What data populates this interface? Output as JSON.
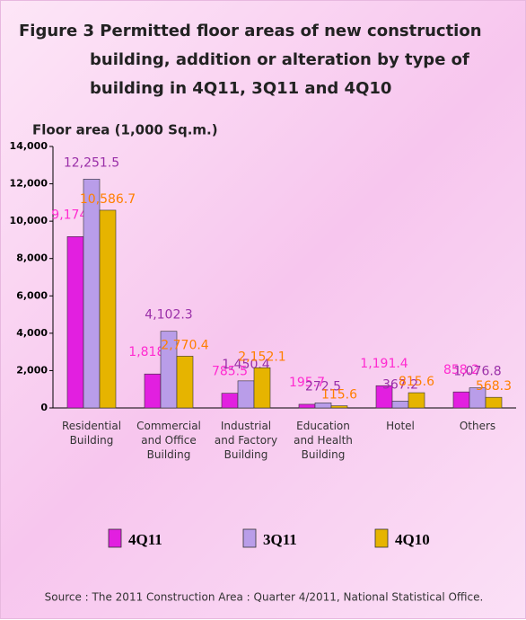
{
  "chart_data": {
    "type": "bar",
    "title": "Figure 3  Permitted floor areas of new construction building, addition or alteration by type of building in 4Q11, 3Q11 and 4Q10",
    "y_axis_label": "Floor area (1,000 Sq.m.)",
    "categories": [
      "Residential\nBuilding",
      "Commercial\nand Office\nBuilding",
      "Industrial\nand Factory\nBuilding",
      "Education\nand Health\nBuilding",
      "Hotel",
      "Others"
    ],
    "series": [
      {
        "name": "4Q11",
        "color": "#e21fe0",
        "label_color": "#ff2ad0",
        "values": [
          9174.3,
          1818.1,
          785.5,
          195.7,
          1191.4,
          858.2
        ],
        "value_labels": [
          "9,174.3",
          "1,818.1",
          "785.5",
          "195.7",
          "1,191.4",
          "858.2"
        ]
      },
      {
        "name": "3Q11",
        "color": "#b99de9",
        "label_color": "#9a2fa8",
        "values": [
          12251.5,
          4102.3,
          1450.4,
          272.5,
          367.2,
          1076.8
        ],
        "value_labels": [
          "12,251.5",
          "4,102.3",
          "1,450.4",
          "272.5",
          "367.2",
          "1,076.8"
        ]
      },
      {
        "name": "4Q10",
        "color": "#e6b400",
        "label_color": "#ff7f00",
        "values": [
          10586.7,
          2770.4,
          2152.1,
          115.6,
          815.6,
          568.3
        ],
        "value_labels": [
          "10,586.7",
          "2,770.4",
          "2,152.1",
          "115.6",
          "815.6",
          "568.3"
        ]
      }
    ],
    "ylim": [
      0,
      14000
    ],
    "yticks": [
      0,
      {
        "value": 2000,
        "label": "2,000"
      },
      {
        "value": 4000,
        "label": "4,000"
      },
      {
        "value": 6000,
        "label": "6,000"
      },
      {
        "value": 8000,
        "label": "8,000"
      },
      {
        "value": 10000,
        "label": "10,000"
      },
      {
        "value": 12000,
        "label": "12,000"
      },
      {
        "value": 14000,
        "label": "14,000"
      }
    ],
    "legend": "bottom",
    "source": "Source : The 2011 Construction Area : Quarter 4/2011, National Statistical  Office."
  }
}
